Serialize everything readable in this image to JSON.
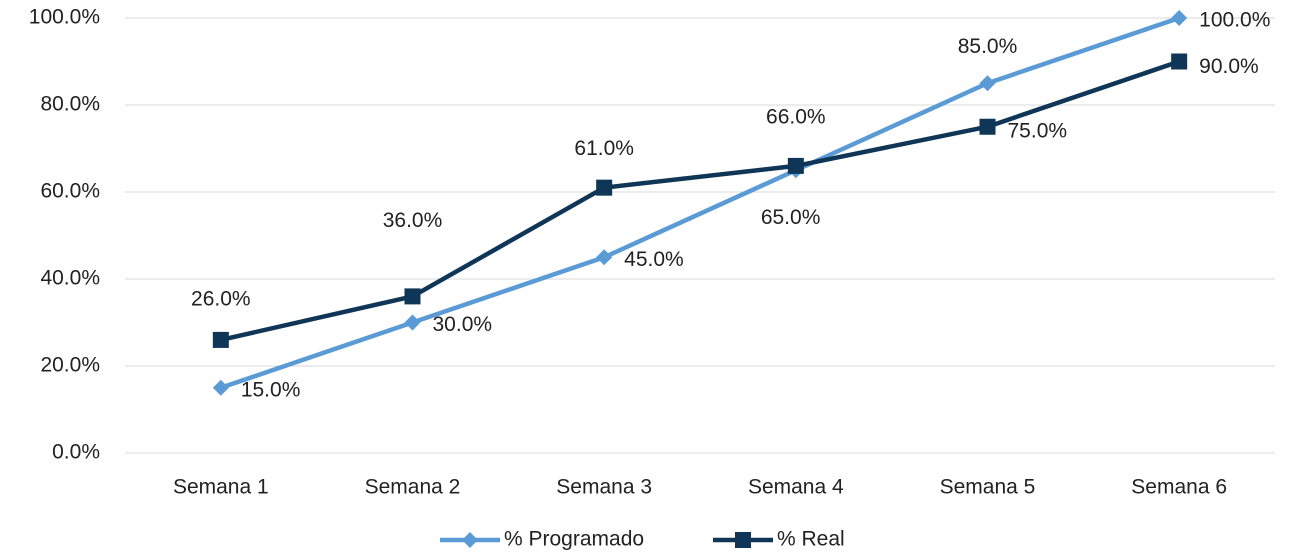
{
  "chart_data": {
    "type": "line",
    "categories": [
      "Semana 1",
      "Semana 2",
      "Semana 3",
      "Semana 4",
      "Semana 5",
      "Semana 6"
    ],
    "series": [
      {
        "name": "% Programado",
        "color": "#5b9bd5",
        "marker": "diamond",
        "values": [
          15,
          30,
          45,
          65,
          85,
          100
        ],
        "value_labels": [
          "15.0%",
          "30.0%",
          "45.0%",
          "65.0%",
          "85.0%",
          "100.0%"
        ]
      },
      {
        "name": "% Real",
        "color": "#0f3557",
        "marker": "square",
        "values": [
          26,
          36,
          61,
          66,
          75,
          90
        ],
        "value_labels": [
          "26.0%",
          "36.0%",
          "61.0%",
          "66.0%",
          "75.0%",
          "90.0%"
        ]
      }
    ],
    "ylim": [
      0,
      100
    ],
    "yticks": [
      {
        "value": 0,
        "label": "0.0%"
      },
      {
        "value": 20,
        "label": "20.0%"
      },
      {
        "value": 40,
        "label": "40.0%"
      },
      {
        "value": 60,
        "label": "60.0%"
      },
      {
        "value": 80,
        "label": "80.0%"
      },
      {
        "value": 100,
        "label": "100.0%"
      }
    ],
    "grid": true,
    "legend": "bottom"
  }
}
